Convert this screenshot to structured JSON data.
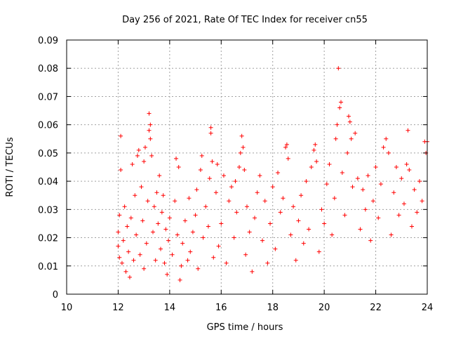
{
  "chart_data": {
    "type": "scatter",
    "title": "Day 256 of 2021, Rate Of TEC Index for receiver cn55",
    "xlabel": "GPS time / hours",
    "ylabel": "ROTI / TECUs",
    "xlim": [
      10,
      24
    ],
    "ylim": [
      0,
      0.09
    ],
    "xticks": [
      10,
      12,
      14,
      16,
      18,
      20,
      22,
      24
    ],
    "xtick_labels": [
      "10",
      "12",
      "14",
      "16",
      "18",
      "20",
      "22",
      "24"
    ],
    "yticks": [
      0,
      0.01,
      0.02,
      0.03,
      0.04,
      0.05,
      0.06,
      0.07,
      0.08,
      0.09
    ],
    "ytick_labels": [
      "0",
      "0.01",
      "0.02",
      "0.03",
      "0.04",
      "0.05",
      "0.06",
      "0.07",
      "0.08",
      "0.09"
    ],
    "grid": true,
    "marker": "+",
    "color": "#ff0000",
    "series": [
      {
        "name": "ROTI",
        "points": [
          [
            12.0,
            0.022
          ],
          [
            12.0,
            0.017
          ],
          [
            12.05,
            0.013
          ],
          [
            12.05,
            0.028
          ],
          [
            12.1,
            0.044
          ],
          [
            12.1,
            0.056
          ],
          [
            12.15,
            0.011
          ],
          [
            12.2,
            0.019
          ],
          [
            12.25,
            0.031
          ],
          [
            12.3,
            0.008
          ],
          [
            12.35,
            0.024
          ],
          [
            12.4,
            0.015
          ],
          [
            12.45,
            0.006
          ],
          [
            12.5,
            0.027
          ],
          [
            12.55,
            0.046
          ],
          [
            12.6,
            0.012
          ],
          [
            12.65,
            0.035
          ],
          [
            12.7,
            0.021
          ],
          [
            12.75,
            0.049
          ],
          [
            12.8,
            0.051
          ],
          [
            12.85,
            0.014
          ],
          [
            12.9,
            0.038
          ],
          [
            12.95,
            0.026
          ],
          [
            13.0,
            0.009
          ],
          [
            13.0,
            0.047
          ],
          [
            13.05,
            0.052
          ],
          [
            13.1,
            0.018
          ],
          [
            13.15,
            0.033
          ],
          [
            13.2,
            0.064
          ],
          [
            13.2,
            0.058
          ],
          [
            13.25,
            0.06
          ],
          [
            13.25,
            0.055
          ],
          [
            13.3,
            0.049
          ],
          [
            13.35,
            0.022
          ],
          [
            13.4,
            0.031
          ],
          [
            13.45,
            0.012
          ],
          [
            13.5,
            0.036
          ],
          [
            13.55,
            0.025
          ],
          [
            13.6,
            0.042
          ],
          [
            13.65,
            0.016
          ],
          [
            13.7,
            0.029
          ],
          [
            13.75,
            0.035
          ],
          [
            13.8,
            0.011
          ],
          [
            13.85,
            0.023
          ],
          [
            13.9,
            0.007
          ],
          [
            13.95,
            0.019
          ],
          [
            14.0,
            0.027
          ],
          [
            14.1,
            0.014
          ],
          [
            14.2,
            0.033
          ],
          [
            14.25,
            0.048
          ],
          [
            14.3,
            0.021
          ],
          [
            14.35,
            0.045
          ],
          [
            14.4,
            0.005
          ],
          [
            14.45,
            0.01
          ],
          [
            14.5,
            0.018
          ],
          [
            14.6,
            0.026
          ],
          [
            14.7,
            0.012
          ],
          [
            14.75,
            0.034
          ],
          [
            14.8,
            0.015
          ],
          [
            14.9,
            0.022
          ],
          [
            15.0,
            0.028
          ],
          [
            15.05,
            0.037
          ],
          [
            15.1,
            0.009
          ],
          [
            15.2,
            0.044
          ],
          [
            15.25,
            0.049
          ],
          [
            15.3,
            0.02
          ],
          [
            15.4,
            0.031
          ],
          [
            15.5,
            0.024
          ],
          [
            15.55,
            0.041
          ],
          [
            15.6,
            0.059
          ],
          [
            15.6,
            0.057
          ],
          [
            15.65,
            0.047
          ],
          [
            15.7,
            0.013
          ],
          [
            15.8,
            0.036
          ],
          [
            15.85,
            0.046
          ],
          [
            15.9,
            0.017
          ],
          [
            16.0,
            0.025
          ],
          [
            16.1,
            0.042
          ],
          [
            16.2,
            0.011
          ],
          [
            16.3,
            0.033
          ],
          [
            16.4,
            0.038
          ],
          [
            16.5,
            0.02
          ],
          [
            16.55,
            0.04
          ],
          [
            16.6,
            0.029
          ],
          [
            16.7,
            0.045
          ],
          [
            16.75,
            0.05
          ],
          [
            16.8,
            0.056
          ],
          [
            16.85,
            0.052
          ],
          [
            16.9,
            0.044
          ],
          [
            16.95,
            0.014
          ],
          [
            17.0,
            0.031
          ],
          [
            17.1,
            0.022
          ],
          [
            17.2,
            0.008
          ],
          [
            17.3,
            0.027
          ],
          [
            17.4,
            0.036
          ],
          [
            17.5,
            0.042
          ],
          [
            17.6,
            0.019
          ],
          [
            17.7,
            0.033
          ],
          [
            17.8,
            0.011
          ],
          [
            17.9,
            0.025
          ],
          [
            18.0,
            0.038
          ],
          [
            18.1,
            0.016
          ],
          [
            18.2,
            0.043
          ],
          [
            18.3,
            0.029
          ],
          [
            18.4,
            0.034
          ],
          [
            18.5,
            0.052
          ],
          [
            18.55,
            0.053
          ],
          [
            18.6,
            0.048
          ],
          [
            18.7,
            0.021
          ],
          [
            18.8,
            0.031
          ],
          [
            18.9,
            0.012
          ],
          [
            19.0,
            0.026
          ],
          [
            19.1,
            0.035
          ],
          [
            19.2,
            0.018
          ],
          [
            19.3,
            0.04
          ],
          [
            19.4,
            0.023
          ],
          [
            19.5,
            0.045
          ],
          [
            19.6,
            0.051
          ],
          [
            19.65,
            0.053
          ],
          [
            19.7,
            0.047
          ],
          [
            19.8,
            0.015
          ],
          [
            19.9,
            0.03
          ],
          [
            20.0,
            0.025
          ],
          [
            20.1,
            0.039
          ],
          [
            20.2,
            0.046
          ],
          [
            20.3,
            0.021
          ],
          [
            20.4,
            0.034
          ],
          [
            20.45,
            0.055
          ],
          [
            20.5,
            0.06
          ],
          [
            20.55,
            0.08
          ],
          [
            20.6,
            0.066
          ],
          [
            20.65,
            0.068
          ],
          [
            20.7,
            0.043
          ],
          [
            20.8,
            0.028
          ],
          [
            20.9,
            0.05
          ],
          [
            20.95,
            0.063
          ],
          [
            21.0,
            0.061
          ],
          [
            21.05,
            0.055
          ],
          [
            21.1,
            0.038
          ],
          [
            21.2,
            0.057
          ],
          [
            21.3,
            0.041
          ],
          [
            21.4,
            0.023
          ],
          [
            21.5,
            0.037
          ],
          [
            21.6,
            0.03
          ],
          [
            21.7,
            0.042
          ],
          [
            21.8,
            0.019
          ],
          [
            21.9,
            0.033
          ],
          [
            22.0,
            0.045
          ],
          [
            22.1,
            0.027
          ],
          [
            22.2,
            0.039
          ],
          [
            22.3,
            0.052
          ],
          [
            22.4,
            0.055
          ],
          [
            22.5,
            0.05
          ],
          [
            22.6,
            0.021
          ],
          [
            22.7,
            0.036
          ],
          [
            22.8,
            0.045
          ],
          [
            22.9,
            0.028
          ],
          [
            23.0,
            0.041
          ],
          [
            23.1,
            0.032
          ],
          [
            23.2,
            0.046
          ],
          [
            23.25,
            0.058
          ],
          [
            23.3,
            0.044
          ],
          [
            23.4,
            0.024
          ],
          [
            23.5,
            0.037
          ],
          [
            23.6,
            0.029
          ],
          [
            23.7,
            0.04
          ],
          [
            23.8,
            0.033
          ],
          [
            23.9,
            0.054
          ],
          [
            23.95,
            0.05
          ],
          [
            24.0,
            0.054
          ]
        ]
      }
    ]
  }
}
